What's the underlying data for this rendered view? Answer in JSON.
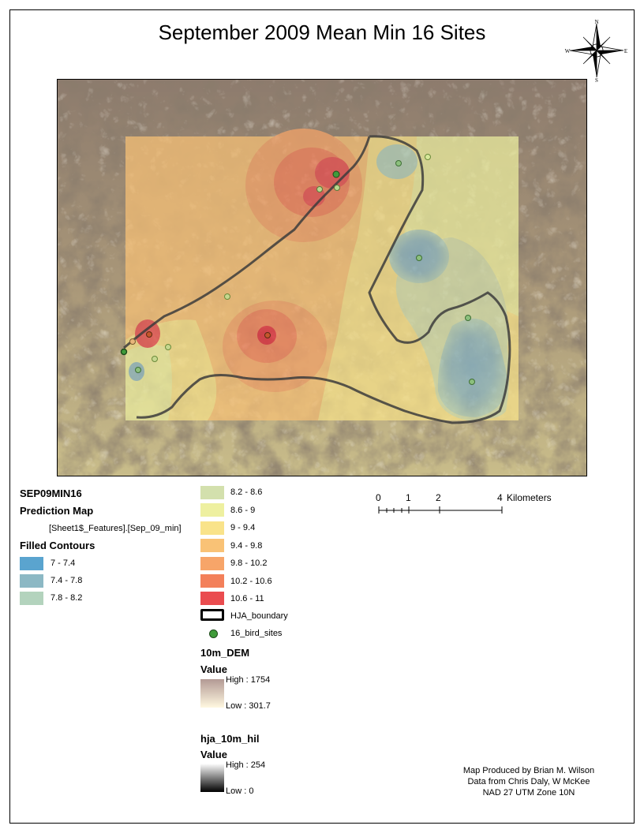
{
  "title": "September 2009 Mean Min 16 Sites",
  "compass": {
    "n": "N",
    "s": "S",
    "e": "E",
    "w": "W"
  },
  "legend": {
    "layer_name": "SEP09MIN16",
    "prediction_map": "Prediction Map",
    "field": "[Sheet1$_Features].[Sep_09_min]",
    "filled_contours": "Filled Contours",
    "classes": [
      {
        "label": "7 - 7.4",
        "color": "#5aa4cf"
      },
      {
        "label": "7.4 - 7.8",
        "color": "#8cb8c4"
      },
      {
        "label": "7.8 - 8.2",
        "color": "#b3d3bd"
      },
      {
        "label": "8.2 - 8.6",
        "color": "#d3e0ad"
      },
      {
        "label": "8.6 - 9",
        "color": "#eef0a0"
      },
      {
        "label": "9 - 9.4",
        "color": "#f9e38a"
      },
      {
        "label": "9.4 - 9.8",
        "color": "#f9c276"
      },
      {
        "label": "9.8 - 10.2",
        "color": "#f7a569"
      },
      {
        "label": "10.2 - 10.6",
        "color": "#f3805a"
      },
      {
        "label": "10.6 - 11",
        "color": "#ea4c4f"
      }
    ],
    "boundary_label": "HJA_boundary",
    "sites_label": "16_bird_sites",
    "dem_name": "10m_DEM",
    "dem_value": "Value",
    "dem_high": "High : 1754",
    "dem_low": "Low : 301.7",
    "hil_name": "hja_10m_hil",
    "hil_value": "Value",
    "hil_high": "High : 254",
    "hil_low": "Low : 0"
  },
  "scalebar": {
    "ticks": [
      "0",
      "1",
      "2",
      "4"
    ],
    "unit": "Kilometers"
  },
  "credits": {
    "line1": "Map Produced by Brian M. Wilson",
    "line2": "Data from Chris Daly, W McKee",
    "line3": "NAD 27 UTM Zone 10N"
  }
}
